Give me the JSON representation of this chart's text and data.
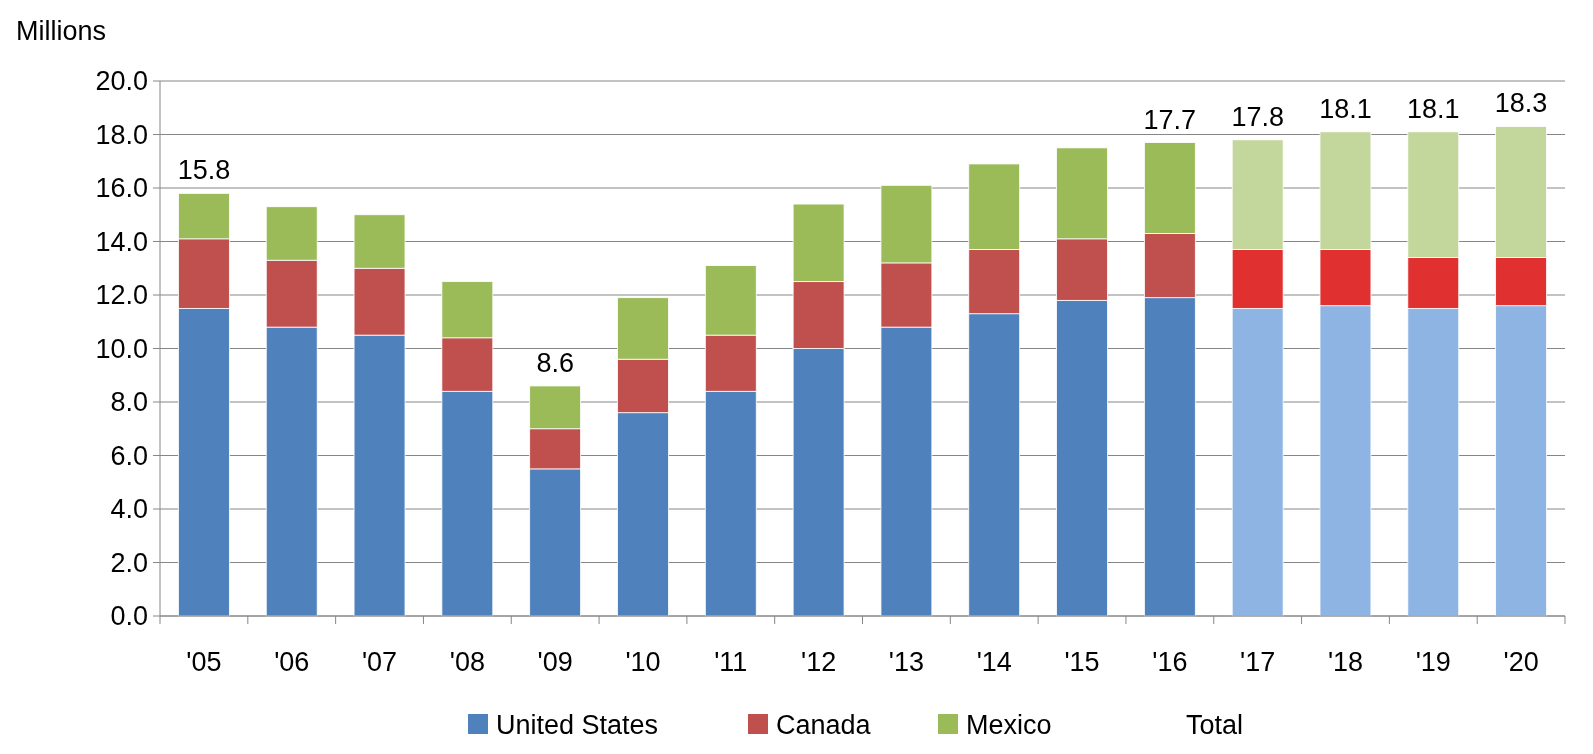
{
  "chart_data": {
    "type": "bar",
    "stacked": true,
    "ylabel": "Millions",
    "categories": [
      "'05",
      "'06",
      "'07",
      "'08",
      "'09",
      "'10",
      "'11",
      "'12",
      "'13",
      "'14",
      "'15",
      "'16",
      "'17",
      "'18",
      "'19",
      "'20"
    ],
    "series": [
      {
        "name": "United States",
        "color": "#4f81bd",
        "colors": [
          "#4f81bd",
          "#4f81bd",
          "#4f81bd",
          "#4f81bd",
          "#4f81bd",
          "#4f81bd",
          "#4f81bd",
          "#4f81bd",
          "#4f81bd",
          "#4f81bd",
          "#4f81bd",
          "#4f81bd",
          "#8eb4e3",
          "#8eb4e3",
          "#8eb4e3",
          "#8eb4e3"
        ],
        "values": [
          11.5,
          10.8,
          10.5,
          8.4,
          5.5,
          7.6,
          8.4,
          10.0,
          10.8,
          11.3,
          11.8,
          11.9,
          11.5,
          11.6,
          11.5,
          11.6
        ]
      },
      {
        "name": "Canada",
        "color": "#c0504d",
        "colors": [
          "#c0504d",
          "#c0504d",
          "#c0504d",
          "#c0504d",
          "#c0504d",
          "#c0504d",
          "#c0504d",
          "#c0504d",
          "#c0504d",
          "#c0504d",
          "#c0504d",
          "#c0504d",
          "#e03030",
          "#e03030",
          "#e03030",
          "#e03030"
        ],
        "values": [
          2.6,
          2.5,
          2.5,
          2.0,
          1.5,
          2.0,
          2.1,
          2.5,
          2.4,
          2.4,
          2.3,
          2.4,
          2.2,
          2.1,
          1.9,
          1.8
        ]
      },
      {
        "name": "Mexico",
        "color": "#9bbb59",
        "colors": [
          "#9bbb59",
          "#9bbb59",
          "#9bbb59",
          "#9bbb59",
          "#9bbb59",
          "#9bbb59",
          "#9bbb59",
          "#9bbb59",
          "#9bbb59",
          "#9bbb59",
          "#9bbb59",
          "#9bbb59",
          "#c3d69b",
          "#c3d69b",
          "#c3d69b",
          "#c3d69b"
        ],
        "values": [
          1.7,
          2.0,
          2.0,
          2.1,
          1.6,
          2.3,
          2.6,
          2.9,
          2.9,
          3.2,
          3.4,
          3.4,
          4.1,
          4.4,
          4.7,
          4.9
        ]
      }
    ],
    "totals": [
      "15.8",
      null,
      null,
      null,
      "8.6",
      null,
      null,
      null,
      null,
      null,
      null,
      "17.7",
      "17.8",
      "18.1",
      "18.1",
      "18.3"
    ],
    "annotations": [
      "Total"
    ],
    "ylim": [
      0,
      20
    ],
    "yticks": [
      {
        "value": 0,
        "label": "0.0"
      },
      {
        "value": 2,
        "label": "2.0"
      },
      {
        "value": 4,
        "label": "4.0"
      },
      {
        "value": 6,
        "label": "6.0"
      },
      {
        "value": 8,
        "label": "8.0"
      },
      {
        "value": 10,
        "label": "10.0"
      },
      {
        "value": 12,
        "label": "12.0"
      },
      {
        "value": 14,
        "label": "14.0"
      },
      {
        "value": 16,
        "label": "16.0"
      },
      {
        "value": 18,
        "label": "18.0"
      },
      {
        "value": 20,
        "label": "20.0"
      }
    ],
    "grid": "y",
    "legend": "bottom"
  }
}
